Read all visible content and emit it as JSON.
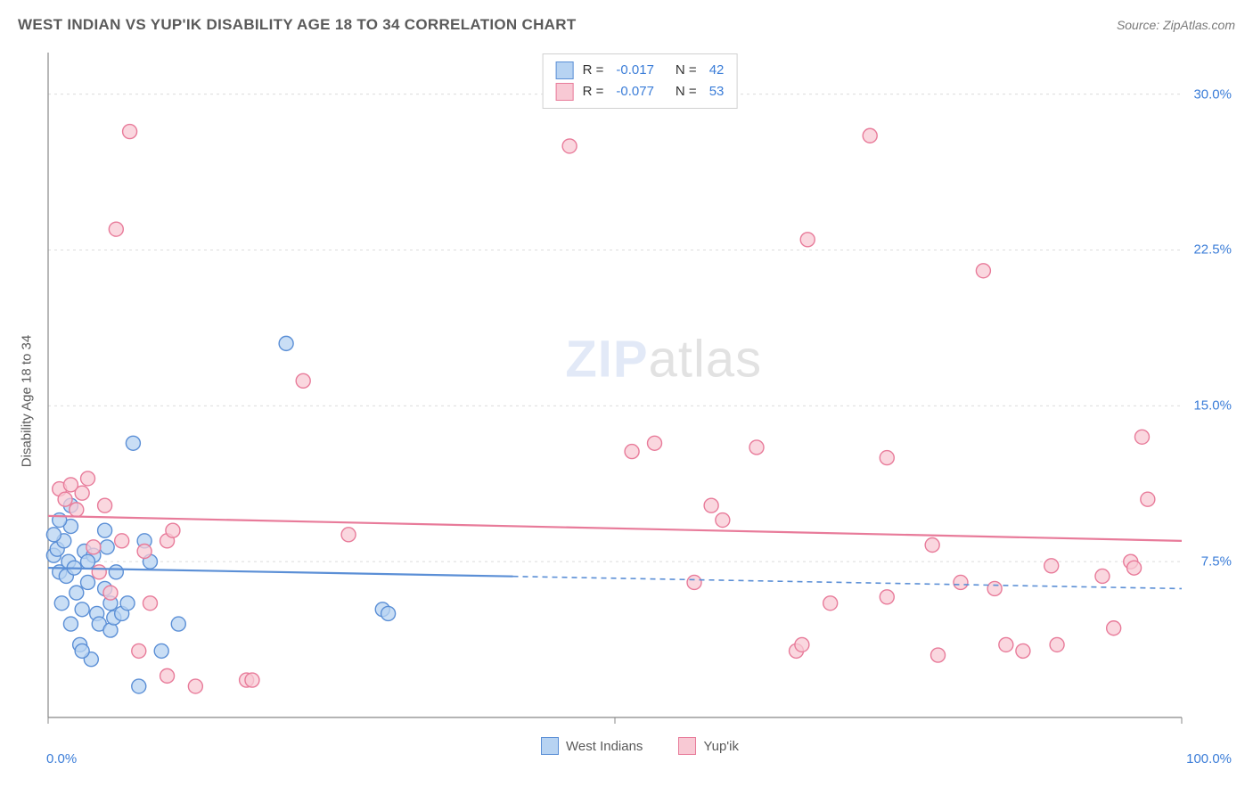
{
  "title": "WEST INDIAN VS YUP'IK DISABILITY AGE 18 TO 34 CORRELATION CHART",
  "source": "Source: ZipAtlas.com",
  "ylabel": "Disability Age 18 to 34",
  "watermark_a": "ZIP",
  "watermark_b": "atlas",
  "chart": {
    "type": "scatter",
    "background_color": "#ffffff",
    "grid_color": "#dcdcdc",
    "axis_color": "#888888",
    "xlim": [
      0,
      100
    ],
    "ylim": [
      0,
      32
    ],
    "ygrid": [
      7.5,
      15.0,
      22.5,
      30.0
    ],
    "xticks": [
      0,
      50,
      100
    ],
    "xlabels": [
      "0.0%",
      "",
      "100.0%"
    ],
    "marker_radius": 8,
    "marker_stroke_width": 1.4,
    "trend_width": 2.2,
    "series": [
      {
        "name": "West Indians",
        "fill": "#b7d3f2",
        "stroke": "#5b8fd6",
        "r": -0.017,
        "n": 42,
        "trend": {
          "y0": 7.2,
          "y1": 6.2,
          "solid_xmax": 41
        },
        "points": [
          [
            0.5,
            7.8
          ],
          [
            0.8,
            8.1
          ],
          [
            1.0,
            7.0
          ],
          [
            1.2,
            5.5
          ],
          [
            1.4,
            8.5
          ],
          [
            1.6,
            6.8
          ],
          [
            1.8,
            7.5
          ],
          [
            2.0,
            4.5
          ],
          [
            2.0,
            9.2
          ],
          [
            2.3,
            7.2
          ],
          [
            2.5,
            6.0
          ],
          [
            2.8,
            3.5
          ],
          [
            3.0,
            5.2
          ],
          [
            3.2,
            8.0
          ],
          [
            3.5,
            6.5
          ],
          [
            3.8,
            2.8
          ],
          [
            4.0,
            7.8
          ],
          [
            4.3,
            5.0
          ],
          [
            4.5,
            4.5
          ],
          [
            5.0,
            6.2
          ],
          [
            5.2,
            8.2
          ],
          [
            5.5,
            4.2
          ],
          [
            5.5,
            5.5
          ],
          [
            5.8,
            4.8
          ],
          [
            6.0,
            7.0
          ],
          [
            6.5,
            5.0
          ],
          [
            7.0,
            5.5
          ],
          [
            7.5,
            13.2
          ],
          [
            8.0,
            1.5
          ],
          [
            9.0,
            7.5
          ],
          [
            10.0,
            3.2
          ],
          [
            11.5,
            4.5
          ],
          [
            8.5,
            8.5
          ],
          [
            5.0,
            9.0
          ],
          [
            3.0,
            3.2
          ],
          [
            21.0,
            18.0
          ],
          [
            29.5,
            5.2
          ],
          [
            30.0,
            5.0
          ],
          [
            2.0,
            10.2
          ],
          [
            0.5,
            8.8
          ],
          [
            1.0,
            9.5
          ],
          [
            3.5,
            7.5
          ]
        ]
      },
      {
        "name": "Yup'ik",
        "fill": "#f8c9d4",
        "stroke": "#e87b9a",
        "r": -0.077,
        "n": 53,
        "trend": {
          "y0": 9.7,
          "y1": 8.5,
          "solid_xmax": 100
        },
        "points": [
          [
            1.0,
            11.0
          ],
          [
            1.5,
            10.5
          ],
          [
            2.0,
            11.2
          ],
          [
            2.5,
            10.0
          ],
          [
            3.0,
            10.8
          ],
          [
            3.5,
            11.5
          ],
          [
            4.0,
            8.2
          ],
          [
            4.5,
            7.0
          ],
          [
            5.0,
            10.2
          ],
          [
            5.5,
            6.0
          ],
          [
            6.0,
            23.5
          ],
          [
            6.5,
            8.5
          ],
          [
            7.2,
            28.2
          ],
          [
            8.0,
            3.2
          ],
          [
            8.5,
            8.0
          ],
          [
            9.0,
            5.5
          ],
          [
            10.5,
            2.0
          ],
          [
            10.5,
            8.5
          ],
          [
            11.0,
            9.0
          ],
          [
            13.0,
            1.5
          ],
          [
            17.5,
            1.8
          ],
          [
            18.0,
            1.8
          ],
          [
            22.5,
            16.2
          ],
          [
            26.5,
            8.8
          ],
          [
            46.0,
            27.5
          ],
          [
            51.5,
            12.8
          ],
          [
            53.5,
            13.2
          ],
          [
            57.0,
            6.5
          ],
          [
            58.5,
            10.2
          ],
          [
            59.5,
            9.5
          ],
          [
            62.5,
            13.0
          ],
          [
            66.0,
            3.2
          ],
          [
            66.5,
            3.5
          ],
          [
            67.0,
            23.0
          ],
          [
            69.0,
            5.5
          ],
          [
            72.5,
            28.0
          ],
          [
            74.0,
            12.5
          ],
          [
            74.0,
            5.8
          ],
          [
            78.0,
            8.3
          ],
          [
            78.5,
            3.0
          ],
          [
            80.5,
            6.5
          ],
          [
            82.5,
            21.5
          ],
          [
            83.5,
            6.2
          ],
          [
            84.5,
            3.5
          ],
          [
            86.0,
            3.2
          ],
          [
            88.5,
            7.3
          ],
          [
            89.0,
            3.5
          ],
          [
            93.0,
            6.8
          ],
          [
            94.0,
            4.3
          ],
          [
            95.5,
            7.5
          ],
          [
            95.8,
            7.2
          ],
          [
            96.5,
            13.5
          ],
          [
            97.0,
            10.5
          ]
        ]
      }
    ]
  },
  "legend_top": {
    "rows": [
      {
        "swatch_fill": "#b7d3f2",
        "swatch_stroke": "#5b8fd6",
        "r_lbl": "R =",
        "r_val": "-0.017",
        "n_lbl": "N =",
        "n_val": "42"
      },
      {
        "swatch_fill": "#f8c9d4",
        "swatch_stroke": "#e87b9a",
        "r_lbl": "R =",
        "r_val": "-0.077",
        "n_lbl": "N =",
        "n_val": "53"
      }
    ]
  },
  "legend_bottom": [
    {
      "fill": "#b7d3f2",
      "stroke": "#5b8fd6",
      "label": "West Indians"
    },
    {
      "fill": "#f8c9d4",
      "stroke": "#e87b9a",
      "label": "Yup'ik"
    }
  ],
  "yaxis_ticklabels": [
    "7.5%",
    "15.0%",
    "22.5%",
    "30.0%"
  ]
}
